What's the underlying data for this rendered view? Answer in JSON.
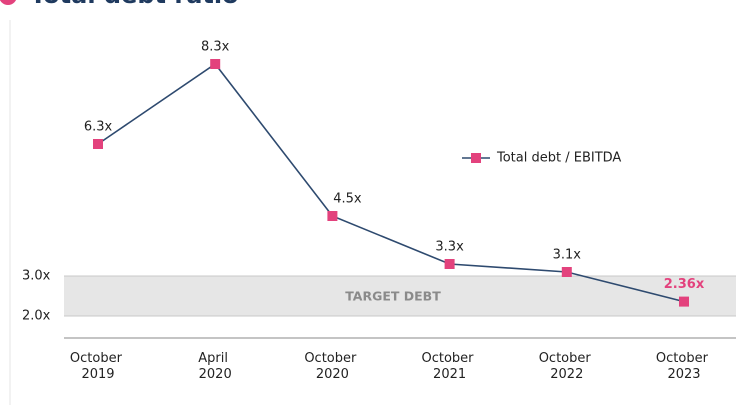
{
  "chart_data": {
    "type": "line",
    "title": "Total debt ratio",
    "categories": [
      "October 2019",
      "April 2020",
      "October 2020",
      "October 2021",
      "October 2022",
      "October 2023"
    ],
    "series": [
      {
        "name": "Total debt / EBITDA",
        "color": "#2e4a6f",
        "marker_color": "#e3427d",
        "values": [
          6.3,
          8.3,
          4.5,
          3.3,
          3.1,
          2.36
        ],
        "value_labels": [
          "6.3x",
          "8.3x",
          "4.5x",
          "3.3x",
          "3.1x",
          "2.36x"
        ]
      }
    ],
    "highlight_color": "#e3427d",
    "ylim": [
      1.45,
      9.5
    ],
    "yticks": [
      {
        "value": 2,
        "label": "2.0x"
      },
      {
        "value": 3,
        "label": "3.0x"
      }
    ],
    "target_range": [
      2,
      3
    ],
    "target_label": "TARGET DEBT",
    "legend": "right"
  }
}
